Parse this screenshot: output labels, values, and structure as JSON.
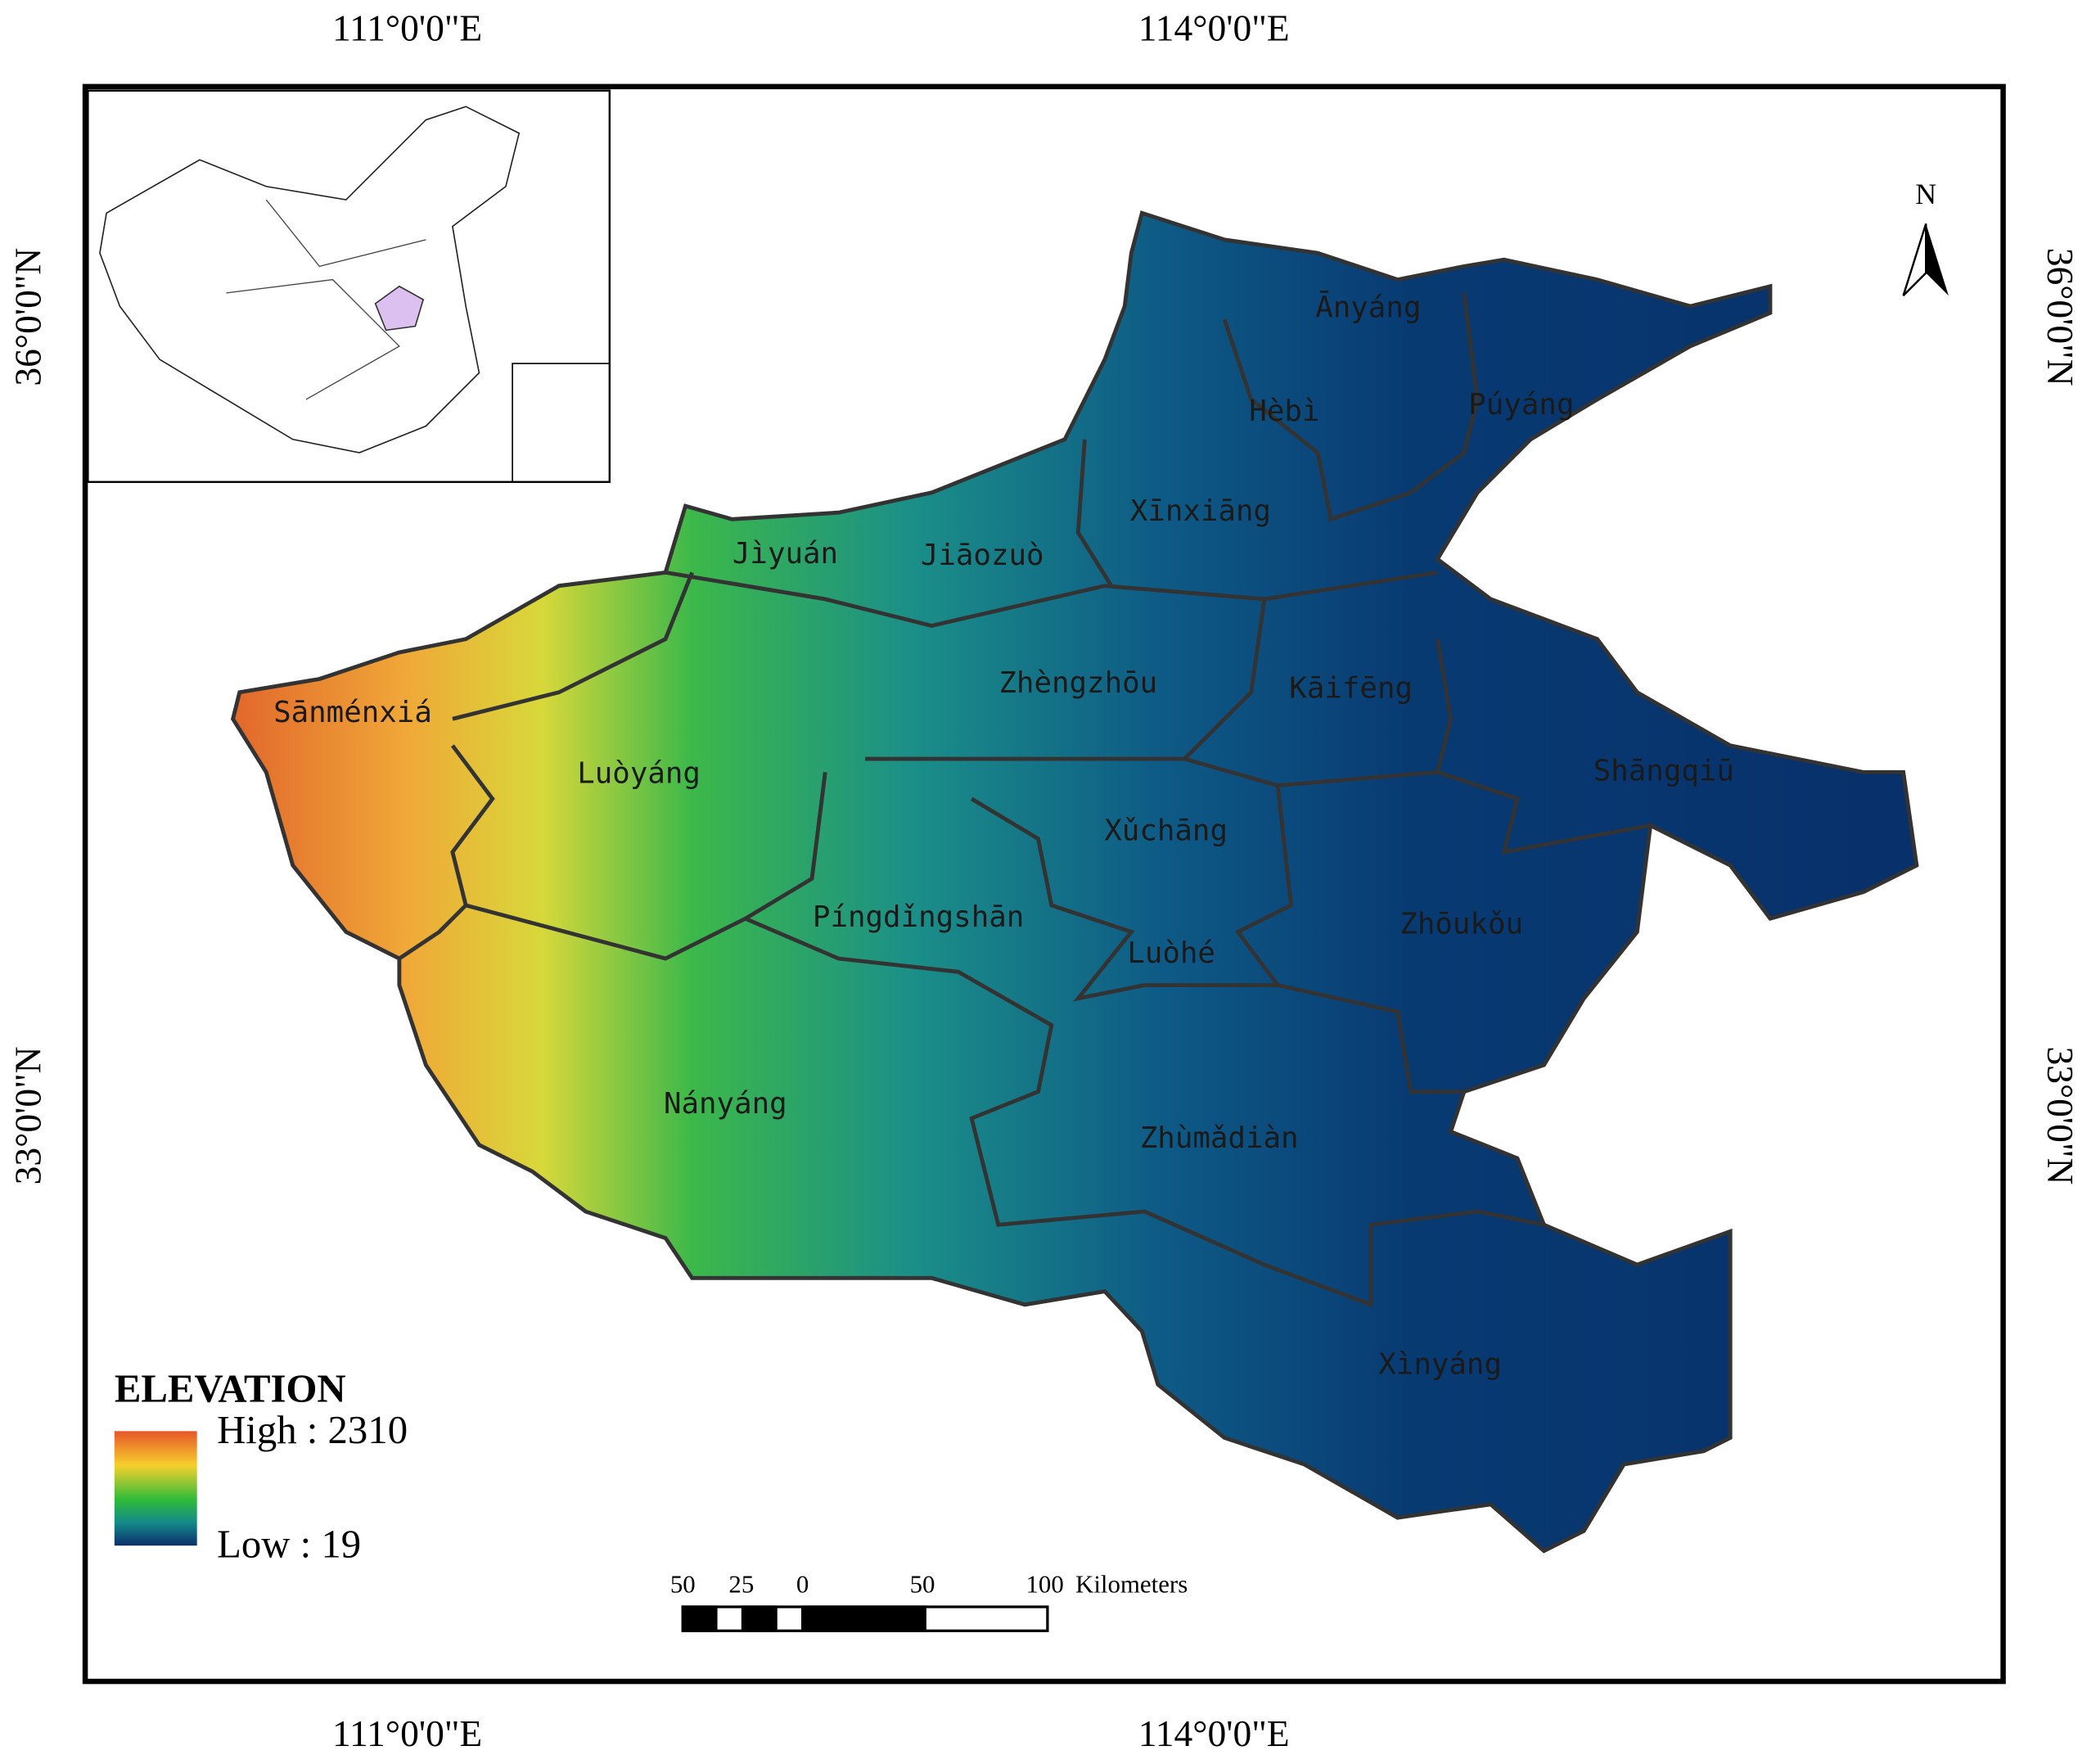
{
  "grid_labels": {
    "top": [
      "111°0'0\"E",
      "114°0'0\"E"
    ],
    "bottom": [
      "111°0'0\"E",
      "114°0'0\"E"
    ],
    "left": [
      "36°0'0\"N",
      "33°0'0\"N"
    ],
    "right": [
      "36°0'0\"N",
      "33°0'0\"N"
    ]
  },
  "north_arrow": "N",
  "regions": [
    "Ānyáng",
    "Hèbì",
    "Púyáng",
    "Xīnxiāng",
    "Jìyuán",
    "Jiāozuò",
    "Zhèngzhōu",
    "Kāifēng",
    "Sānménxiá",
    "Luòyáng",
    "Shāngqiū",
    "Xǔchāng",
    "Píngdǐngshān",
    "Zhōukǒu",
    "Luòhé",
    "Nányáng",
    "Zhùmǎdiàn",
    "Xìnyáng"
  ],
  "legend": {
    "title": "ELEVATION",
    "high": "High : 2310",
    "low": "Low : 19"
  },
  "scale_bar": {
    "labels": [
      "50",
      "25",
      "0",
      "50",
      "100"
    ],
    "unit": "Kilometers"
  }
}
